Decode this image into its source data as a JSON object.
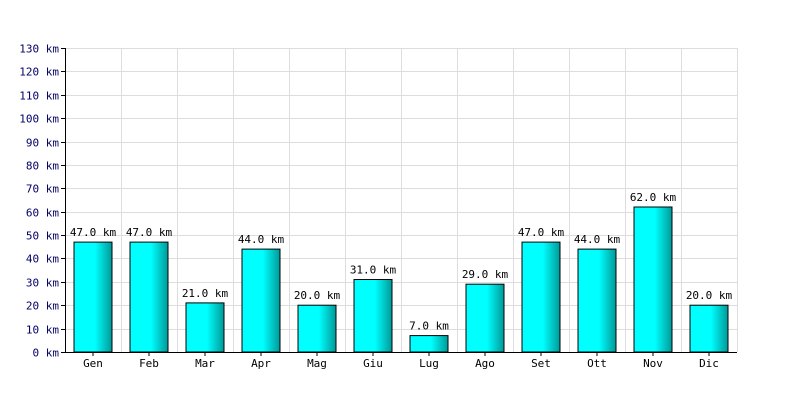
{
  "chart_data": {
    "type": "bar",
    "title": "",
    "xlabel": "",
    "ylabel": "",
    "categories": [
      "Gen",
      "Feb",
      "Mar",
      "Apr",
      "Mag",
      "Giu",
      "Lug",
      "Ago",
      "Set",
      "Ott",
      "Nov",
      "Dic"
    ],
    "values": [
      47,
      47,
      21,
      44,
      20,
      31,
      7,
      29,
      47,
      44,
      62,
      20
    ],
    "value_labels": [
      "47.0 km",
      "47.0 km",
      "21.0 km",
      "44.0 km",
      "20.0 km",
      "31.0 km",
      "7.0 km",
      "29.0 km",
      "47.0 km",
      "44.0 km",
      "62.0 km",
      "20.0 km"
    ],
    "unit": "km",
    "ylim": [
      0,
      130
    ],
    "y_ticks": [
      0,
      10,
      20,
      30,
      40,
      50,
      60,
      70,
      80,
      90,
      100,
      110,
      120,
      130
    ],
    "y_tick_labels": [
      "0 km",
      "10 km",
      "20 km",
      "30 km",
      "40 km",
      "50 km",
      "60 km",
      "70 km",
      "80 km",
      "90 km",
      "100 km",
      "110 km",
      "120 km",
      "130 km"
    ],
    "grid": true,
    "legend": "none",
    "colors": {
      "bar_light": "#00ffff",
      "bar_dark": "#009999",
      "bar_edge": "#000000",
      "grid": "#dddddd",
      "axis": "#000000",
      "tick_text": "#000066"
    }
  }
}
